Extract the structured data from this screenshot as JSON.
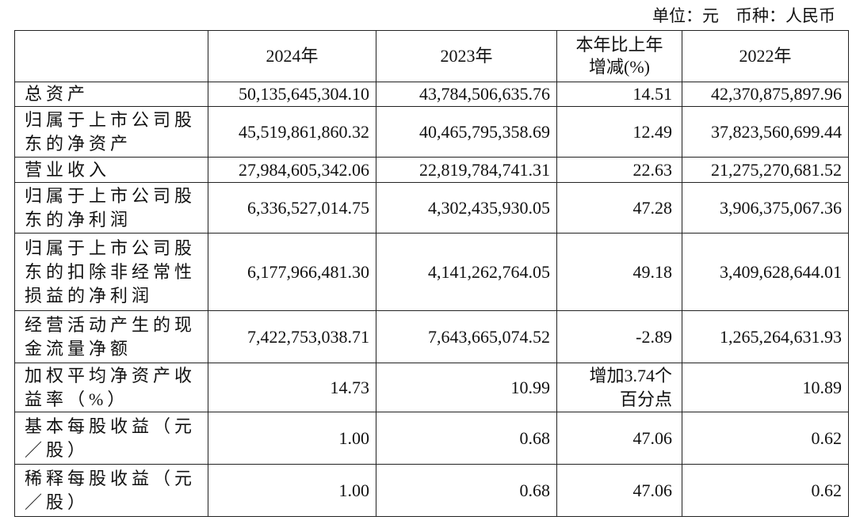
{
  "unit_note": "单位：元　币种：人民币",
  "table": {
    "header": [
      "",
      "2024年",
      "2023年",
      "本年比上年增减(%)",
      "2022年"
    ],
    "rows": [
      [
        "总资产",
        "50,135,645,304.10",
        "43,784,506,635.76",
        "14.51",
        "42,370,875,897.96"
      ],
      [
        "归属于上市公司股东的净资产",
        "45,519,861,860.32",
        "40,465,795,358.69",
        "12.49",
        "37,823,560,699.44"
      ],
      [
        "营业收入",
        "27,984,605,342.06",
        "22,819,784,741.31",
        "22.63",
        "21,275,270,681.52"
      ],
      [
        "归属于上市公司股东的净利润",
        "6,336,527,014.75",
        "4,302,435,930.05",
        "47.28",
        "3,906,375,067.36"
      ],
      [
        "归属于上市公司股东的扣除非经常性损益的净利润",
        "6,177,966,481.30",
        "4,141,262,764.05",
        "49.18",
        "3,409,628,644.01"
      ],
      [
        "经营活动产生的现金流量净额",
        "7,422,753,038.71",
        "7,643,665,074.52",
        "-2.89",
        "1,265,264,631.93"
      ],
      [
        "加权平均净资产收益率（%）",
        "14.73",
        "10.99",
        "增加3.74个百分点",
        "10.89"
      ],
      [
        "基本每股收益（元／股）",
        "1.00",
        "0.68",
        "47.06",
        "0.62"
      ],
      [
        "稀释每股收益（元／股）",
        "1.00",
        "0.68",
        "47.06",
        "0.62"
      ]
    ]
  }
}
